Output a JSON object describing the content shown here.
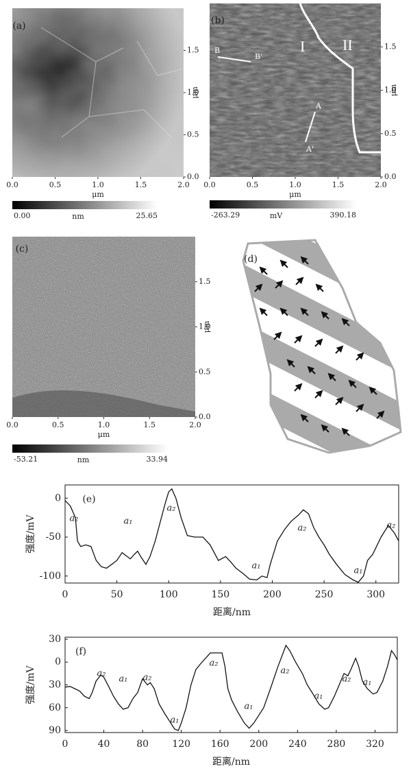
{
  "chart_data": [
    {
      "type": "image",
      "label": "(a)",
      "xlim": [
        0,
        2
      ],
      "ylim": [
        0,
        2
      ],
      "xticks": [
        {
          "value": 0,
          "label": "0.0"
        },
        0.5,
        {
          "value": 1,
          "label": "1.0"
        },
        1.5,
        {
          "value": 2,
          "label": "2.0"
        }
      ],
      "yticks": [
        {
          "value": 0,
          "label": "0.0"
        },
        0.5,
        {
          "value": 1,
          "label": "1.0"
        },
        1.5
      ],
      "xlabel": "μm",
      "ylabel": "μm",
      "colorbar": {
        "min": {
          "value": 0,
          "label": "0.00"
        },
        "max": 25.65,
        "unit": "nm"
      }
    },
    {
      "type": "image",
      "label": "(b)",
      "xlim": [
        0,
        2
      ],
      "ylim": [
        0,
        2
      ],
      "xticks": [
        {
          "value": 0,
          "label": "0.0"
        },
        0.5,
        {
          "value": 1,
          "label": "1.0"
        },
        1.5,
        {
          "value": 2,
          "label": "2.0"
        }
      ],
      "yticks": [
        {
          "value": 0,
          "label": "0.0"
        },
        0.5,
        {
          "value": 1,
          "label": "1.0"
        },
        1.5
      ],
      "xlabel": "μm",
      "ylabel": "μm",
      "colorbar": {
        "min": -263.29,
        "max": 390.18,
        "unit": "mV"
      },
      "annotations": [
        "B",
        "B'",
        "A",
        "A'",
        "I",
        "II"
      ]
    },
    {
      "type": "image",
      "label": "(c)",
      "xlim": [
        0,
        2
      ],
      "ylim": [
        0,
        2
      ],
      "xticks": [
        {
          "value": 0,
          "label": "0.0"
        },
        0.5,
        {
          "value": 1,
          "label": "1.0"
        },
        1.5,
        {
          "value": 2,
          "label": "2.0"
        }
      ],
      "yticks": [
        {
          "value": 0,
          "label": "0.0"
        },
        0.5,
        {
          "value": 1,
          "label": "1.0"
        },
        1.5
      ],
      "xlabel": "μm",
      "ylabel": "μm",
      "colorbar": {
        "min": -53.21,
        "max": 33.94,
        "unit": "nm"
      }
    },
    {
      "type": "diagram",
      "label": "(d)"
    },
    {
      "type": "line",
      "label": "(e)",
      "xlabel": "距离/nm",
      "ylabel": "强度/mV",
      "color": "#111",
      "xlim": [
        0,
        322
      ],
      "ylim": [
        -109,
        17
      ],
      "xticks": [
        0,
        50,
        100,
        150,
        200,
        250,
        300
      ],
      "yticks": [
        0,
        -50,
        -100
      ],
      "x": [
        0,
        5,
        10,
        12,
        15,
        20,
        25,
        30,
        35,
        40,
        45,
        50,
        55,
        60,
        63,
        67,
        70,
        73,
        78,
        82,
        87,
        92,
        97,
        100,
        103,
        107,
        112,
        118,
        125,
        133,
        140,
        148,
        155,
        160,
        165,
        172,
        178,
        185,
        190,
        195,
        198,
        205,
        212,
        218,
        225,
        230,
        235,
        240,
        245,
        250,
        255,
        262,
        270,
        278,
        283,
        288,
        292,
        297,
        305,
        312,
        318,
        322
      ],
      "values": [
        -3,
        -10,
        -25,
        -55,
        -62,
        -60,
        -62,
        -80,
        -88,
        -90,
        -85,
        -80,
        -70,
        -75,
        -78,
        -72,
        -68,
        -75,
        -85,
        -75,
        -55,
        -30,
        -5,
        8,
        12,
        0,
        -25,
        -48,
        -50,
        -50,
        -60,
        -80,
        -75,
        -82,
        -90,
        -97,
        -104,
        -105,
        -100,
        -102,
        -85,
        -55,
        -40,
        -30,
        -22,
        -15,
        -20,
        -38,
        -50,
        -60,
        -72,
        -85,
        -98,
        -105,
        -108,
        -100,
        -80,
        -72,
        -50,
        -35,
        -45,
        -55
      ],
      "annotations": [
        "a₂",
        "a₁",
        "a₂",
        "a₁",
        "a₂",
        "a₁",
        "a₂"
      ]
    },
    {
      "type": "line",
      "label": "(f)",
      "xlabel": "距离/nm",
      "ylabel": "强度/mV",
      "color": "#111",
      "xlim": [
        0,
        343
      ],
      "ylim": [
        -92.7,
        32.7
      ],
      "xticks": [
        0,
        40,
        80,
        120,
        160,
        200,
        240,
        280,
        320
      ],
      "yticks": [
        30,
        0,
        {
          "value": -30,
          "label": "30"
        },
        {
          "value": -60,
          "label": "60"
        },
        {
          "value": -90,
          "label": "90"
        }
      ],
      "x": [
        0,
        5,
        10,
        15,
        20,
        25,
        28,
        32,
        37,
        40,
        45,
        50,
        55,
        60,
        65,
        70,
        75,
        80,
        85,
        88,
        92,
        97,
        103,
        108,
        113,
        117,
        120,
        125,
        130,
        135,
        140,
        145,
        150,
        155,
        162,
        165,
        168,
        172,
        178,
        185,
        190,
        195,
        200,
        205,
        212,
        220,
        226,
        228,
        232,
        238,
        245,
        250,
        255,
        262,
        268,
        272,
        278,
        283,
        288,
        292,
        295,
        300,
        303,
        307,
        312,
        318,
        322,
        328,
        333,
        337,
        340,
        343
      ],
      "values": [
        -33,
        -32,
        -35,
        -38,
        -45,
        -48,
        -40,
        -25,
        -17,
        -20,
        -32,
        -45,
        -55,
        -62,
        -60,
        -48,
        -40,
        -22,
        -30,
        -27,
        -35,
        -55,
        -68,
        -78,
        -88,
        -90,
        -80,
        -60,
        -30,
        -10,
        -2,
        5,
        12,
        12,
        12,
        -5,
        -35,
        -50,
        -65,
        -80,
        -87,
        -80,
        -70,
        -60,
        -35,
        -5,
        15,
        22,
        15,
        0,
        -15,
        -30,
        -40,
        -55,
        -62,
        -60,
        -45,
        -30,
        -15,
        -18,
        -10,
        5,
        -5,
        -25,
        -35,
        -42,
        -40,
        -25,
        -5,
        15,
        10,
        3
      ],
      "annotations": [
        "a₂",
        "a₁",
        "a₂",
        "a₁",
        "a₂",
        "a₁",
        "a₂",
        "a₁",
        "a₂",
        "a₁"
      ]
    }
  ]
}
